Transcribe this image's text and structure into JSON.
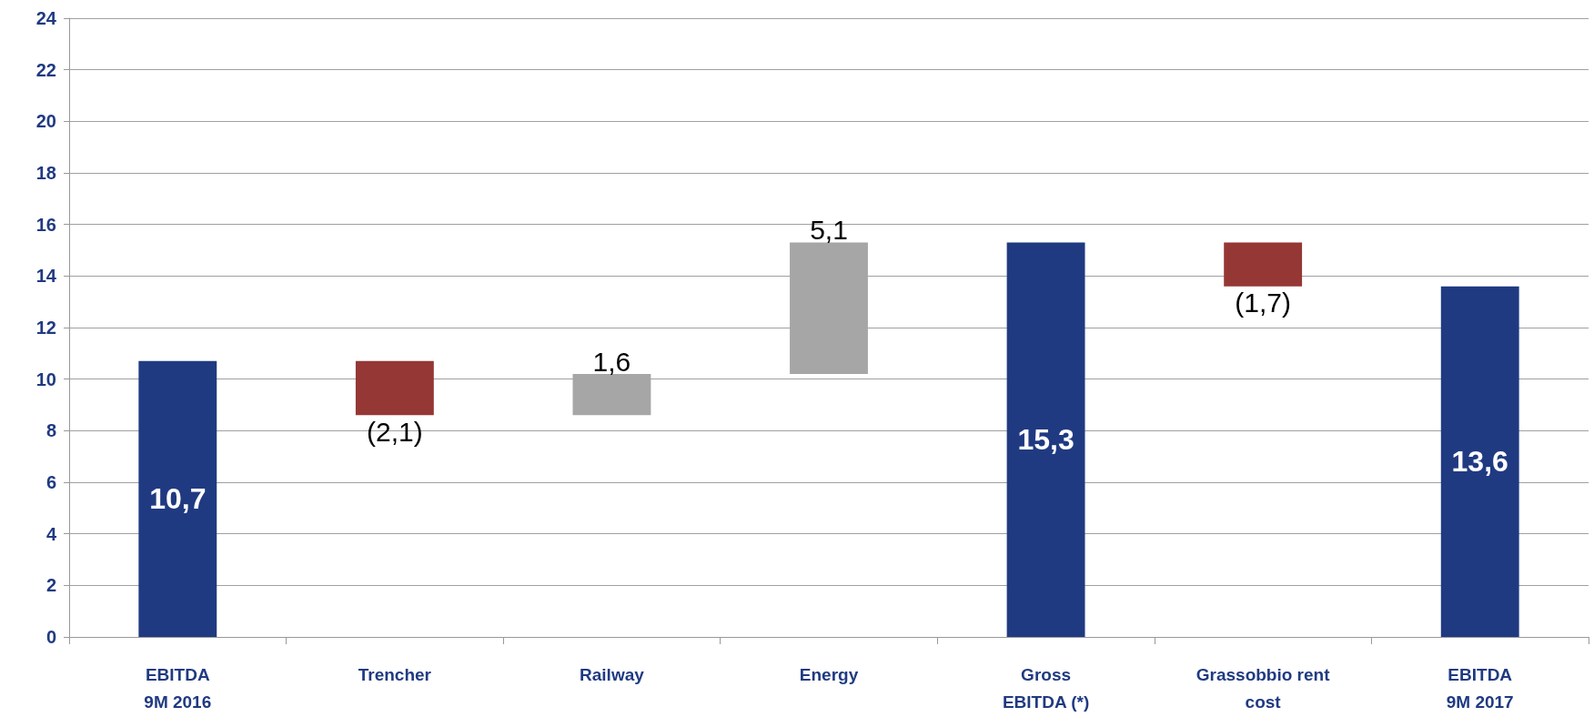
{
  "chart_data": {
    "type": "bar",
    "categories": [
      "EBITDA\n9M 2016",
      "Trencher",
      "Railway",
      "Energy",
      "Gross\nEBITDA (*)",
      "Grassobbio rent\ncost",
      "EBITDA\n9M 2017"
    ],
    "values": [
      10.7,
      -2.1,
      1.6,
      5.1,
      15.3,
      -1.7,
      13.6
    ],
    "base": [
      0,
      10.7,
      8.6,
      10.2,
      0,
      15.3,
      0
    ],
    "colors": [
      "#203a82",
      "#953735",
      "#a6a6a6",
      "#a6a6a6",
      "#203a82",
      "#953735",
      "#203a82"
    ],
    "value_labels": [
      "10,7",
      "(2,1)",
      "1,6",
      "5,1",
      "15,3",
      "(1,7)",
      "13,6"
    ],
    "ylim": [
      0,
      24
    ],
    "yticks": [
      0,
      2,
      4,
      6,
      8,
      10,
      12,
      14,
      16,
      18,
      20,
      22,
      24
    ],
    "grid": "y"
  }
}
